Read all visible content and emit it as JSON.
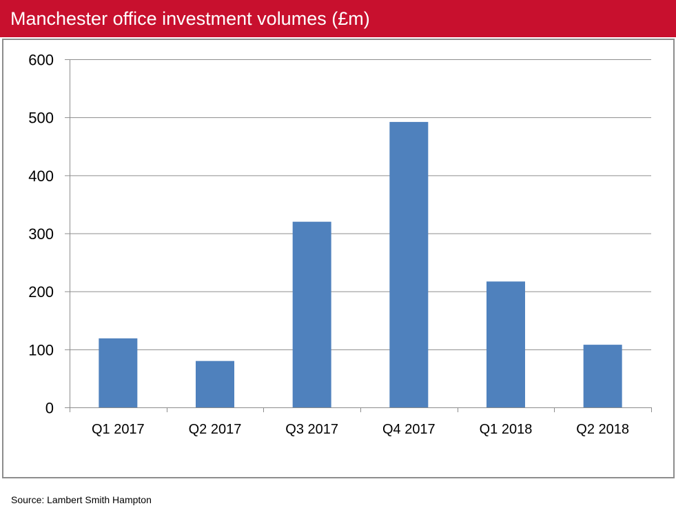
{
  "header": {
    "title": "Manchester office investment volumes (£m)"
  },
  "footer": {
    "source": "Source: Lambert Smith Hampton"
  },
  "colors": {
    "header": "#C8102E",
    "bar": "#4F81BD",
    "grid": "#8c8c8c"
  },
  "chart_data": {
    "type": "bar",
    "title": "Manchester office investment volumes (£m)",
    "categories": [
      "Q1 2017",
      "Q2 2017",
      "Q3 2017",
      "Q4 2017",
      "Q1 2018",
      "Q2 2018"
    ],
    "values": [
      119,
      80,
      320,
      492,
      217,
      108
    ],
    "ylim": [
      0,
      600
    ],
    "yticks": [
      0,
      100,
      200,
      300,
      400,
      500,
      600
    ],
    "grid": true,
    "legend": "none"
  }
}
